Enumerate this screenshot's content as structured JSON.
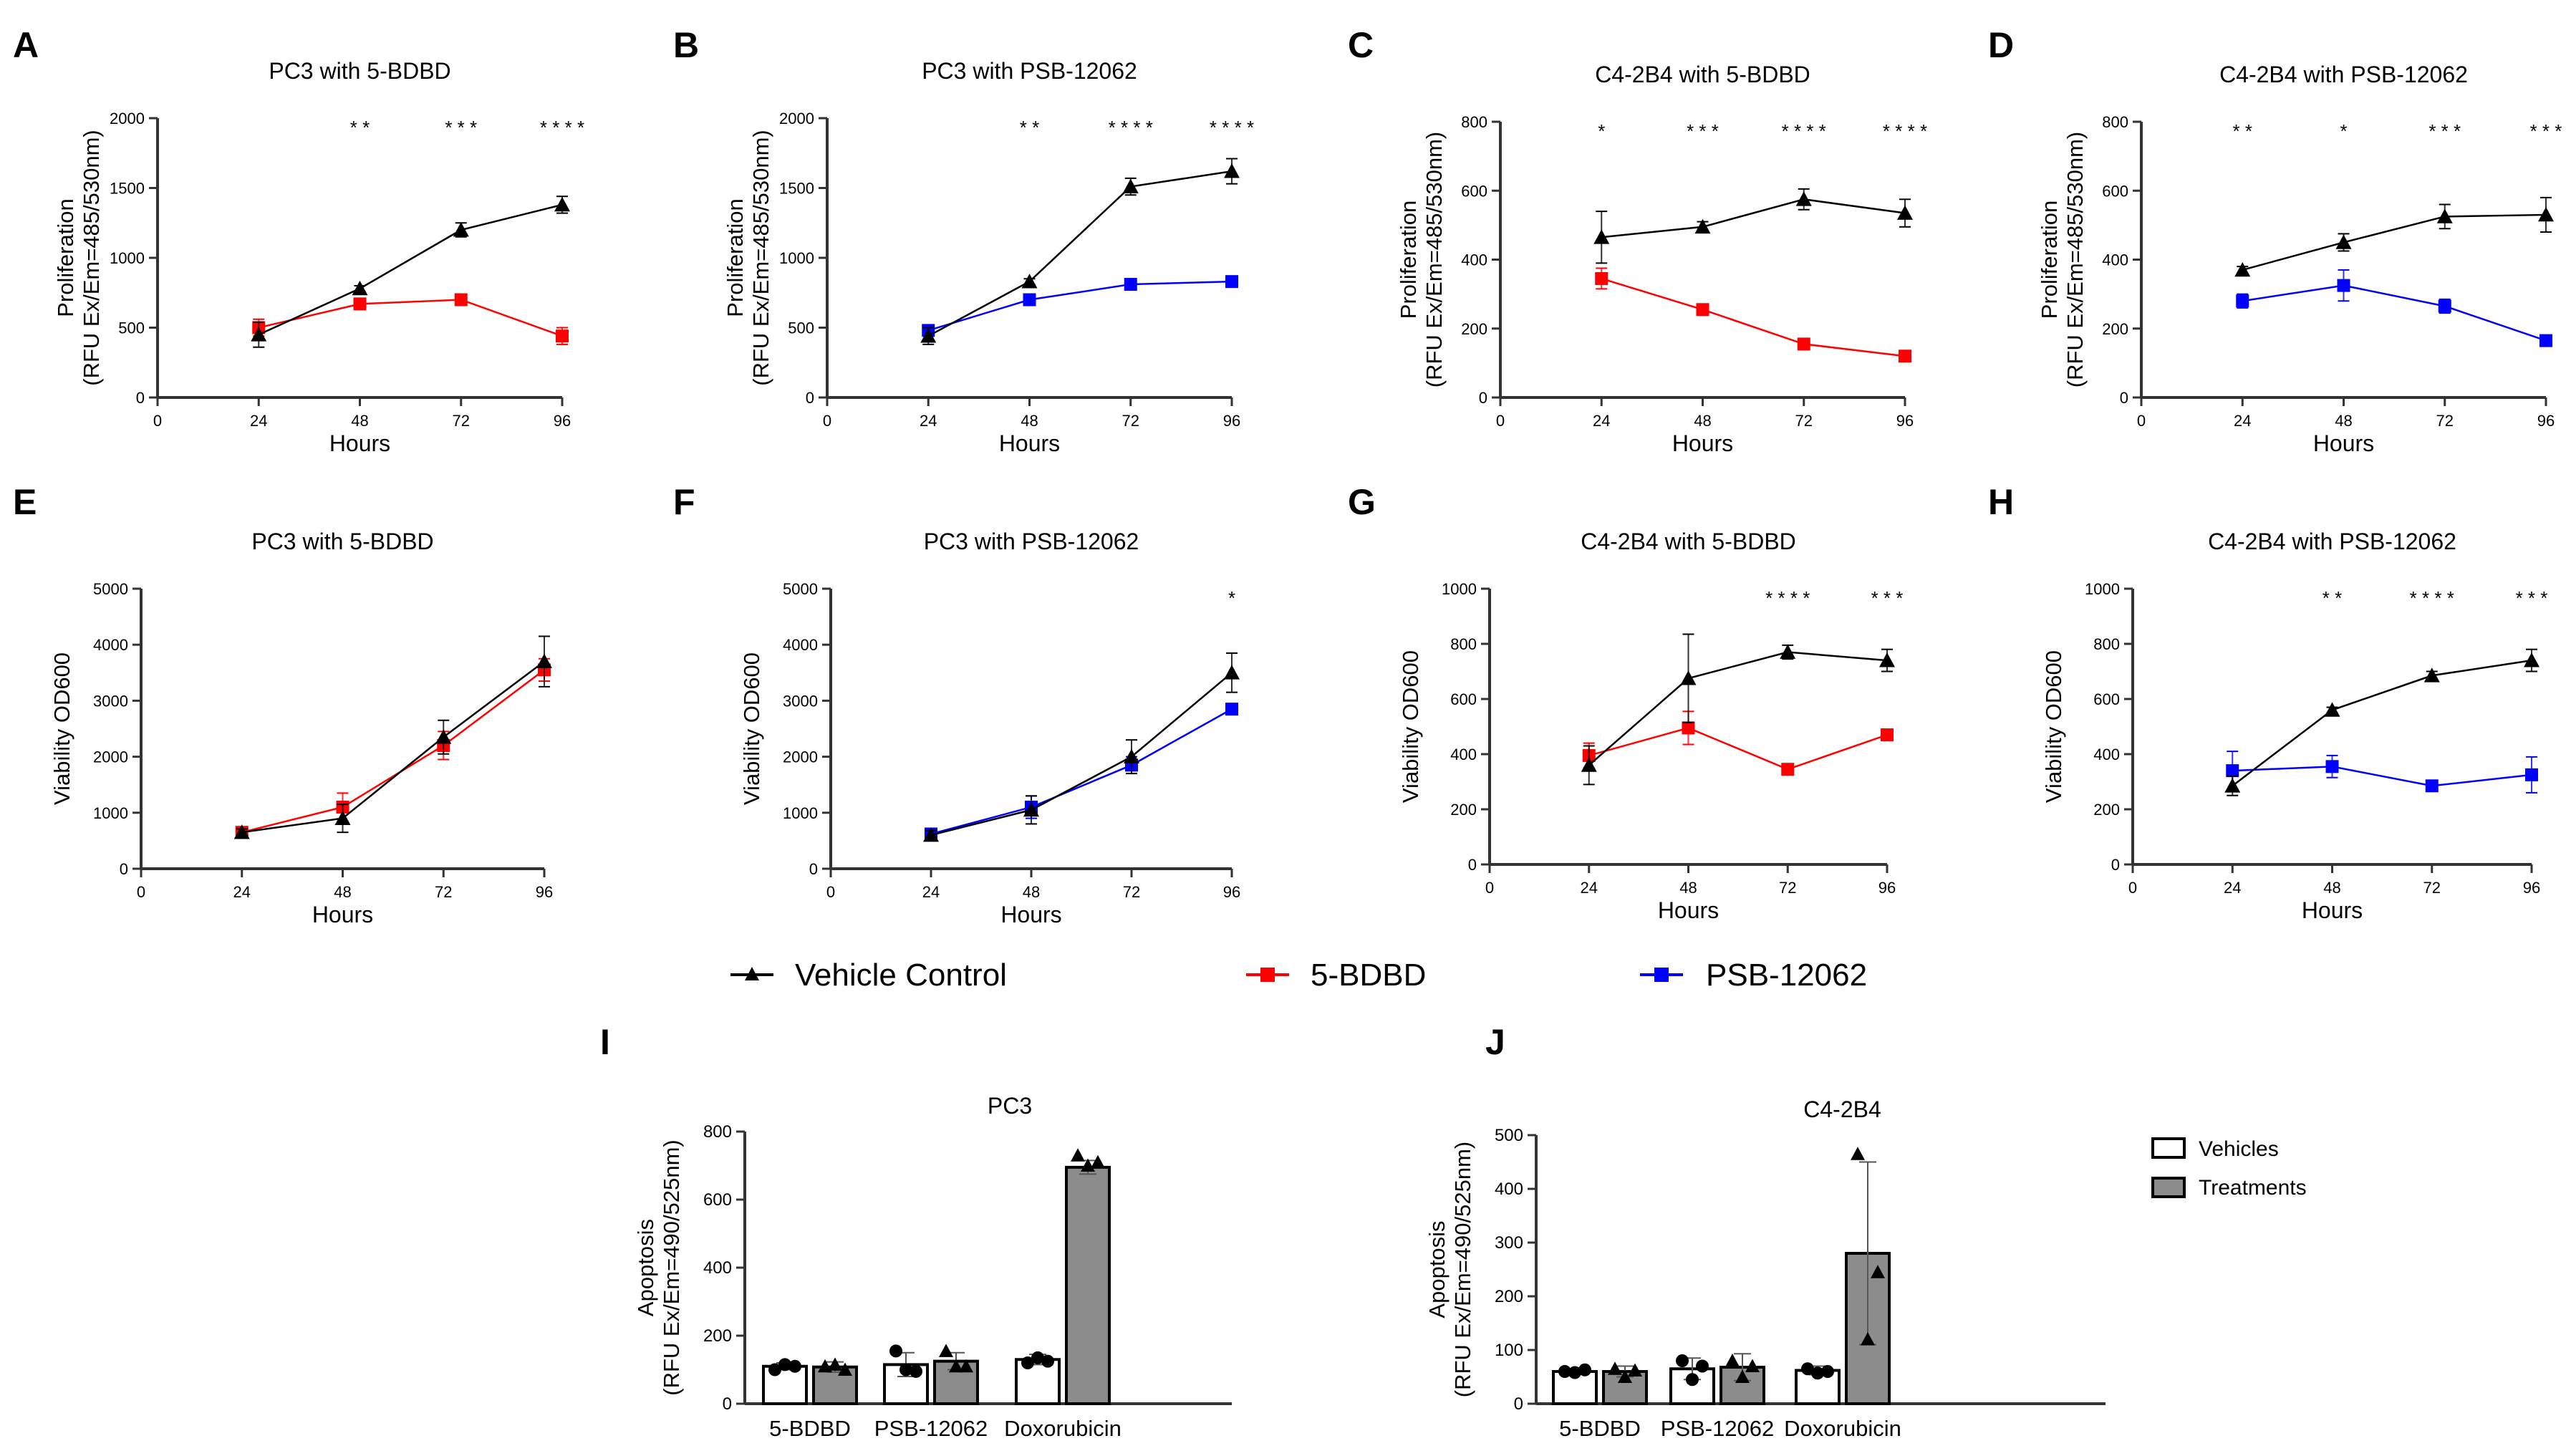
{
  "legend": {
    "items": [
      {
        "label": "Vehicle Control",
        "color": "#000000",
        "marker": "triangle"
      },
      {
        "label": "5-BDBD",
        "color": "#ff0000",
        "marker": "square"
      },
      {
        "label": "PSB-12062",
        "color": "#0000ff",
        "marker": "square"
      }
    ]
  },
  "bar_legend": {
    "items": [
      {
        "label": "Vehicles",
        "color": "#ffffff"
      },
      {
        "label": "Treatments",
        "color": "#8c8c8c"
      }
    ]
  },
  "chart_data": [
    {
      "panel": "A",
      "type": "line",
      "title": "PC3 with  5-BDBD",
      "ylabel": [
        "Proliferation",
        "(RFU Ex/Em=485/530nm)"
      ],
      "xlabel": "Hours",
      "x": [
        24,
        48,
        72,
        96
      ],
      "xlim": [
        0,
        96
      ],
      "ylim": [
        0,
        2000
      ],
      "yticks": [
        0,
        500,
        1000,
        1500,
        2000
      ],
      "xticks": [
        0,
        24,
        48,
        72,
        96
      ],
      "significance": [
        {
          "x": 48,
          "label": "* *"
        },
        {
          "x": 72,
          "label": "* * *"
        },
        {
          "x": 96,
          "label": "* * * *"
        }
      ],
      "series": [
        {
          "name": "Vehicle Control",
          "color": "#000000",
          "marker": "triangle",
          "values": [
            450,
            780,
            1200,
            1380
          ],
          "errors": [
            90,
            20,
            50,
            60
          ]
        },
        {
          "name": "5-BDBD",
          "color": "#ff0000",
          "marker": "square",
          "values": [
            500,
            670,
            700,
            440
          ],
          "errors": [
            60,
            30,
            40,
            60
          ]
        }
      ]
    },
    {
      "panel": "B",
      "type": "line",
      "title": "PC3 with PSB-12062",
      "ylabel": [
        "Proliferation",
        "(RFU Ex/Em=485/530nm)"
      ],
      "xlabel": "Hours",
      "x": [
        24,
        48,
        72,
        96
      ],
      "xlim": [
        0,
        96
      ],
      "ylim": [
        0,
        2000
      ],
      "yticks": [
        0,
        500,
        1000,
        1500,
        2000
      ],
      "xticks": [
        0,
        24,
        48,
        72,
        96
      ],
      "significance": [
        {
          "x": 48,
          "label": "* *"
        },
        {
          "x": 72,
          "label": "* * * *"
        },
        {
          "x": 96,
          "label": "* * * *"
        }
      ],
      "series": [
        {
          "name": "Vehicle Control",
          "color": "#000000",
          "marker": "triangle",
          "values": [
            440,
            830,
            1510,
            1620
          ],
          "errors": [
            60,
            20,
            60,
            90
          ]
        },
        {
          "name": "PSB-12062",
          "color": "#0000ff",
          "marker": "square",
          "values": [
            480,
            700,
            810,
            830
          ],
          "errors": [
            30,
            20,
            20,
            20
          ]
        }
      ]
    },
    {
      "panel": "C",
      "type": "line",
      "title": "C4-2B4 with 5-BDBD",
      "ylabel": [
        "Proliferation",
        "(RFU Ex/Em=485/530nm)"
      ],
      "xlabel": "Hours",
      "x": [
        24,
        48,
        72,
        96
      ],
      "xlim": [
        0,
        96
      ],
      "ylim": [
        0,
        800
      ],
      "yticks": [
        0,
        200,
        400,
        600,
        800
      ],
      "xticks": [
        0,
        24,
        48,
        72,
        96
      ],
      "significance": [
        {
          "x": 24,
          "label": "*"
        },
        {
          "x": 48,
          "label": "* * *"
        },
        {
          "x": 72,
          "label": "* * * *"
        },
        {
          "x": 96,
          "label": "* * * *"
        }
      ],
      "series": [
        {
          "name": "Vehicle Control",
          "color": "#000000",
          "marker": "triangle",
          "values": [
            465,
            495,
            575,
            535
          ],
          "errors": [
            75,
            15,
            30,
            40
          ]
        },
        {
          "name": "5-BDBD",
          "color": "#ff0000",
          "marker": "square",
          "values": [
            345,
            255,
            155,
            120
          ],
          "errors": [
            30,
            15,
            10,
            8
          ]
        }
      ]
    },
    {
      "panel": "D",
      "type": "line",
      "title": "C4-2B4 with PSB-12062",
      "ylabel": [
        "Proliferation",
        "(RFU Ex/Em=485/530nm)"
      ],
      "xlabel": "Hours",
      "x": [
        24,
        48,
        72,
        96
      ],
      "xlim": [
        0,
        96
      ],
      "ylim": [
        0,
        800
      ],
      "yticks": [
        0,
        200,
        400,
        600,
        800
      ],
      "xticks": [
        0,
        24,
        48,
        72,
        96
      ],
      "significance": [
        {
          "x": 24,
          "label": "* *"
        },
        {
          "x": 48,
          "label": "*"
        },
        {
          "x": 72,
          "label": "* * *"
        },
        {
          "x": 96,
          "label": "* * *"
        }
      ],
      "series": [
        {
          "name": "Vehicle Control",
          "color": "#000000",
          "marker": "triangle",
          "values": [
            370,
            450,
            525,
            530
          ],
          "errors": [
            10,
            25,
            35,
            50
          ]
        },
        {
          "name": "PSB-12062",
          "color": "#0000ff",
          "marker": "square",
          "values": [
            280,
            325,
            265,
            165
          ],
          "errors": [
            20,
            45,
            20,
            8
          ]
        }
      ]
    },
    {
      "panel": "E",
      "type": "line",
      "title": "PC3 with 5-BDBD",
      "ylabel": [
        "Viability OD600"
      ],
      "xlabel": "Hours",
      "x": [
        24,
        48,
        72,
        96
      ],
      "xlim": [
        0,
        96
      ],
      "ylim": [
        0,
        5000
      ],
      "yticks": [
        0,
        1000,
        2000,
        3000,
        4000,
        5000
      ],
      "xticks": [
        0,
        24,
        48,
        72,
        96
      ],
      "significance": [],
      "series": [
        {
          "name": "Vehicle Control",
          "color": "#000000",
          "marker": "triangle",
          "values": [
            650,
            900,
            2350,
            3700
          ],
          "errors": [
            60,
            250,
            300,
            450
          ]
        },
        {
          "name": "5-BDBD",
          "color": "#ff0000",
          "marker": "square",
          "values": [
            650,
            1100,
            2200,
            3550
          ],
          "errors": [
            80,
            250,
            250,
            200
          ]
        }
      ]
    },
    {
      "panel": "F",
      "type": "line",
      "title": "PC3 with PSB-12062",
      "ylabel": [
        "Viability OD600"
      ],
      "xlabel": "Hours",
      "x": [
        24,
        48,
        72,
        96
      ],
      "xlim": [
        0,
        96
      ],
      "ylim": [
        0,
        5000
      ],
      "yticks": [
        0,
        1000,
        2000,
        3000,
        4000,
        5000
      ],
      "xticks": [
        0,
        24,
        48,
        72,
        96
      ],
      "significance": [
        {
          "x": 96,
          "label": "*"
        }
      ],
      "series": [
        {
          "name": "Vehicle Control",
          "color": "#000000",
          "marker": "triangle",
          "values": [
            600,
            1050,
            2000,
            3500
          ],
          "errors": [
            80,
            250,
            300,
            350
          ]
        },
        {
          "name": "PSB-12062",
          "color": "#0000ff",
          "marker": "square",
          "values": [
            620,
            1100,
            1850,
            2850
          ],
          "errors": [
            60,
            200,
            150,
            50
          ]
        }
      ]
    },
    {
      "panel": "G",
      "type": "line",
      "title": "C4-2B4 with 5-BDBD",
      "ylabel": [
        "Viability OD600"
      ],
      "xlabel": "Hours",
      "x": [
        24,
        48,
        72,
        96
      ],
      "xlim": [
        0,
        96
      ],
      "ylim": [
        0,
        1000
      ],
      "yticks": [
        0,
        200,
        400,
        600,
        800,
        1000
      ],
      "xticks": [
        0,
        24,
        48,
        72,
        96
      ],
      "significance": [
        {
          "x": 72,
          "label": "* * * *"
        },
        {
          "x": 96,
          "label": "* * *"
        }
      ],
      "series": [
        {
          "name": "Vehicle Control",
          "color": "#000000",
          "marker": "triangle",
          "values": [
            360,
            675,
            770,
            740
          ],
          "errors": [
            70,
            160,
            25,
            40
          ]
        },
        {
          "name": "5-BDBD",
          "color": "#ff0000",
          "marker": "square",
          "values": [
            395,
            495,
            345,
            470
          ],
          "errors": [
            45,
            60,
            10,
            15
          ]
        }
      ]
    },
    {
      "panel": "H",
      "type": "line",
      "title": "C4-2B4 with PSB-12062",
      "ylabel": [
        "Viability OD600"
      ],
      "xlabel": "Hours",
      "x": [
        24,
        48,
        72,
        96
      ],
      "xlim": [
        0,
        96
      ],
      "ylim": [
        0,
        1000
      ],
      "yticks": [
        0,
        200,
        400,
        600,
        800,
        1000
      ],
      "xticks": [
        0,
        24,
        48,
        72,
        96
      ],
      "significance": [
        {
          "x": 48,
          "label": "* *"
        },
        {
          "x": 72,
          "label": "* * * *"
        },
        {
          "x": 96,
          "label": "* * *"
        }
      ],
      "series": [
        {
          "name": "Vehicle Control",
          "color": "#000000",
          "marker": "triangle",
          "values": [
            285,
            560,
            685,
            740
          ],
          "errors": [
            35,
            10,
            15,
            40
          ]
        },
        {
          "name": "PSB-12062",
          "color": "#0000ff",
          "marker": "square",
          "values": [
            340,
            355,
            285,
            325
          ],
          "errors": [
            70,
            40,
            15,
            65
          ]
        }
      ]
    },
    {
      "panel": "I",
      "type": "bar",
      "title": "PC3",
      "ylabel": [
        "Apoptosis",
        "(RFU Ex/Em=490/525nm)"
      ],
      "categories": [
        "5-BDBD",
        "PSB-12062",
        "Doxorubicin"
      ],
      "ylim": [
        0,
        800
      ],
      "yticks": [
        0,
        200,
        400,
        600,
        800
      ],
      "series": [
        {
          "name": "Vehicles",
          "color": "#ffffff",
          "values": [
            110,
            115,
            130
          ],
          "errors": [
            10,
            35,
            15
          ],
          "points": [
            [
              100,
              115,
              110
            ],
            [
              155,
              100,
              95
            ],
            [
              120,
              135,
              125
            ]
          ],
          "marker": "circle"
        },
        {
          "name": "Treatments",
          "color": "#8c8c8c",
          "values": [
            108,
            125,
            695
          ],
          "errors": [
            15,
            25,
            20
          ],
          "points": [
            [
              110,
              115,
              100
            ],
            [
              155,
              110,
              110
            ],
            [
              730,
              700,
              710
            ]
          ],
          "marker": "triangle"
        }
      ]
    },
    {
      "panel": "J",
      "type": "bar",
      "title": "C4-2B4",
      "ylabel": [
        "Apoptosis",
        "(RFU Ex/Em=490/525nm)"
      ],
      "categories": [
        "5-BDBD",
        "PSB-12062",
        "Doxorubicin"
      ],
      "ylim": [
        0,
        500
      ],
      "yticks": [
        0,
        100,
        200,
        300,
        400,
        500
      ],
      "series": [
        {
          "name": "Vehicles",
          "color": "#ffffff",
          "values": [
            60,
            65,
            62
          ],
          "errors": [
            5,
            20,
            8
          ],
          "points": [
            [
              60,
              58,
              63
            ],
            [
              80,
              45,
              70
            ],
            [
              65,
              57,
              60
            ]
          ],
          "marker": "circle"
        },
        {
          "name": "Treatments",
          "color": "#8c8c8c",
          "values": [
            60,
            68,
            280
          ],
          "errors": [
            10,
            25,
            170
          ],
          "points": [
            [
              65,
              50,
              62
            ],
            [
              80,
              50,
              70
            ],
            [
              465,
              120,
              245
            ]
          ],
          "marker": "triangle"
        }
      ]
    }
  ]
}
